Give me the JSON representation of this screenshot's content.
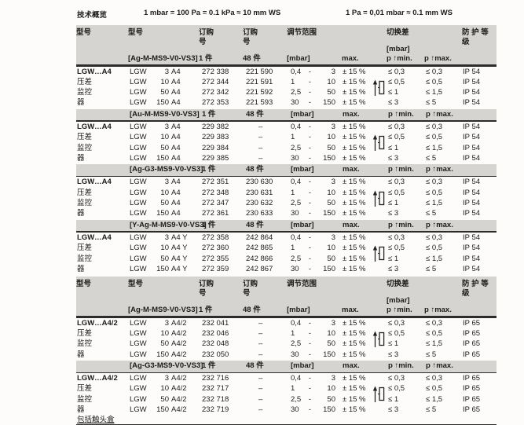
{
  "header": {
    "title": "技术概览",
    "conversion_left": "1 mbar = 100 Pa = 0.1 kPa ≈ 10 mm WS",
    "conversion_right": "1 Pa = 0,01 mbar ≈ 0.1 mm WS"
  },
  "column_headers": {
    "model_group": "型号",
    "model": "型号",
    "order_line1": "订购",
    "order_line2": "号",
    "range": "调节范围",
    "switching_diff": "切换差",
    "protection_line1": "防 护 等",
    "protection_line2": "级",
    "mbar": "[mbar]",
    "qty_1": "1 件",
    "qty_48": "48 件",
    "max": "max.",
    "p_min": "p ↑min.",
    "p_max": "p ↑max."
  },
  "icons": {
    "pressure_switch": "up-arrow-with-contact-symbol"
  },
  "colors": {
    "band_gray": "#d5d4d1",
    "rule_dark": "#2e2c2a",
    "text": "#1d1c1a",
    "page_bg": "#fdfcfa"
  },
  "tables": [
    {
      "sections": [
        {
          "variant": "[Ag-M-MS9-V0-VS3]",
          "variant_in_main_header": true,
          "group_label": "LGW…A4",
          "group_sublabels": [
            "压差",
            "监控",
            "器"
          ],
          "rows": [
            {
              "model": [
                "LGW",
                "3",
                "A4"
              ],
              "order_1pc": "272 338",
              "order_48pc": "221 590",
              "range": [
                "0,4",
                "3"
              ],
              "tolerance": "± 15 %",
              "p_min": "≤ 0,3",
              "p_max": "≤ 0,3",
              "protection": "IP 54"
            },
            {
              "model": [
                "LGW",
                "10",
                "A4"
              ],
              "order_1pc": "272 344",
              "order_48pc": "221 591",
              "range": [
                "1",
                "10"
              ],
              "tolerance": "± 15 %",
              "p_min": "≤ 0,5",
              "p_max": "≤ 0,5",
              "protection": "IP 54"
            },
            {
              "model": [
                "LGW",
                "50",
                "A4"
              ],
              "order_1pc": "272 342",
              "order_48pc": "221 592",
              "range": [
                "2,5",
                "50"
              ],
              "tolerance": "± 15 %",
              "p_min": "≤ 1",
              "p_max": "≤ 1,5",
              "protection": "IP 54"
            },
            {
              "model": [
                "LGW",
                "150",
                "A4"
              ],
              "order_1pc": "272 353",
              "order_48pc": "221 593",
              "range": [
                "30",
                "150"
              ],
              "tolerance": "± 15 %",
              "p_min": "≤ 3",
              "p_max": "≤ 5",
              "protection": "IP 54"
            }
          ]
        },
        {
          "variant": "[Au-M-MS9-V0-VS3]",
          "variant_in_main_header": false,
          "group_label": "LGW…A4",
          "group_sublabels": [
            "压差",
            "监控",
            "器"
          ],
          "rows": [
            {
              "model": [
                "LGW",
                "3",
                "A4"
              ],
              "order_1pc": "229 382",
              "order_48pc": "–",
              "range": [
                "0,4",
                "3"
              ],
              "tolerance": "± 15 %",
              "p_min": "≤ 0,3",
              "p_max": "≤ 0,3",
              "protection": "IP 54"
            },
            {
              "model": [
                "LGW",
                "10",
                "A4"
              ],
              "order_1pc": "229 383",
              "order_48pc": "–",
              "range": [
                "1",
                "10"
              ],
              "tolerance": "± 15 %",
              "p_min": "≤ 0,5",
              "p_max": "≤ 0,5",
              "protection": "IP 54"
            },
            {
              "model": [
                "LGW",
                "50",
                "A4"
              ],
              "order_1pc": "229 384",
              "order_48pc": "–",
              "range": [
                "2,5",
                "50"
              ],
              "tolerance": "± 15 %",
              "p_min": "≤ 1",
              "p_max": "≤ 1,5",
              "protection": "IP 54"
            },
            {
              "model": [
                "LGW",
                "150",
                "A4"
              ],
              "order_1pc": "229 385",
              "order_48pc": "–",
              "range": [
                "30",
                "150"
              ],
              "tolerance": "± 15 %",
              "p_min": "≤ 3",
              "p_max": "≤ 5",
              "protection": "IP 54"
            }
          ]
        },
        {
          "variant": "[Ag-G3-MS9-V0-VS3]",
          "variant_in_main_header": false,
          "group_label": "LGW…A4",
          "group_sublabels": [
            "压差",
            "监控",
            "器"
          ],
          "rows": [
            {
              "model": [
                "LGW",
                "3",
                "A4"
              ],
              "order_1pc": "272 351",
              "order_48pc": "230 630",
              "range": [
                "0,4",
                "3"
              ],
              "tolerance": "± 15 %",
              "p_min": "≤ 0,3",
              "p_max": "≤ 0,3",
              "protection": "IP 54"
            },
            {
              "model": [
                "LGW",
                "10",
                "A4"
              ],
              "order_1pc": "272 348",
              "order_48pc": "230 631",
              "range": [
                "1",
                "10"
              ],
              "tolerance": "± 15 %",
              "p_min": "≤ 0,5",
              "p_max": "≤ 0,5",
              "protection": "IP 54"
            },
            {
              "model": [
                "LGW",
                "50",
                "A4"
              ],
              "order_1pc": "272 347",
              "order_48pc": "230 632",
              "range": [
                "2,5",
                "50"
              ],
              "tolerance": "± 15 %",
              "p_min": "≤ 1",
              "p_max": "≤ 1,5",
              "protection": "IP 54"
            },
            {
              "model": [
                "LGW",
                "150",
                "A4"
              ],
              "order_1pc": "272 361",
              "order_48pc": "230 633",
              "range": [
                "30",
                "150"
              ],
              "tolerance": "± 15 %",
              "p_min": "≤ 3",
              "p_max": "≤ 5",
              "protection": "IP 54"
            }
          ]
        },
        {
          "variant": "[Y-Ag-M-MS9-V0-VS3]",
          "variant_in_main_header": false,
          "group_label": "LGW…A4",
          "group_sublabels": [
            "压差",
            "监控",
            "器"
          ],
          "rows": [
            {
              "model": [
                "LGW",
                "3",
                "A4 Y"
              ],
              "order_1pc": "272 358",
              "order_48pc": "242 864",
              "range": [
                "0,4",
                "3"
              ],
              "tolerance": "± 15 %",
              "p_min": "≤ 0,3",
              "p_max": "≤ 0,3",
              "protection": "IP 54"
            },
            {
              "model": [
                "LGW",
                "10",
                "A4 Y"
              ],
              "order_1pc": "272 360",
              "order_48pc": "242 865",
              "range": [
                "1",
                "10"
              ],
              "tolerance": "± 15 %",
              "p_min": "≤ 0,5",
              "p_max": "≤ 0,5",
              "protection": "IP 54"
            },
            {
              "model": [
                "LGW",
                "50",
                "A4 Y"
              ],
              "order_1pc": "272 355",
              "order_48pc": "242 866",
              "range": [
                "2,5",
                "50"
              ],
              "tolerance": "± 15 %",
              "p_min": "≤ 1",
              "p_max": "≤ 1,5",
              "protection": "IP 54"
            },
            {
              "model": [
                "LGW",
                "150",
                "A4 Y"
              ],
              "order_1pc": "272 359",
              "order_48pc": "242 867",
              "range": [
                "30",
                "150"
              ],
              "tolerance": "± 15 %",
              "p_min": "≤ 3",
              "p_max": "≤ 5",
              "protection": "IP 54"
            }
          ]
        }
      ]
    },
    {
      "sections": [
        {
          "variant": "[Ag-M-MS9-V0-VS3]",
          "variant_in_main_header": true,
          "group_label": "LGW…A4/2",
          "group_sublabels": [
            "压差",
            "监控",
            "器"
          ],
          "rows": [
            {
              "model": [
                "LGW",
                "3",
                "A4/2"
              ],
              "order_1pc": "232 041",
              "order_48pc": "–",
              "range": [
                "0,4",
                "3"
              ],
              "tolerance": "± 15 %",
              "p_min": "≤ 0,3",
              "p_max": "≤ 0,3",
              "protection": "IP 65"
            },
            {
              "model": [
                "LGW",
                "10",
                "A4/2"
              ],
              "order_1pc": "232 046",
              "order_48pc": "–",
              "range": [
                "1",
                "10"
              ],
              "tolerance": "± 15 %",
              "p_min": "≤ 0,5",
              "p_max": "≤ 0,5",
              "protection": "IP 65"
            },
            {
              "model": [
                "LGW",
                "50",
                "A4/2"
              ],
              "order_1pc": "232 048",
              "order_48pc": "–",
              "range": [
                "2,5",
                "50"
              ],
              "tolerance": "± 15 %",
              "p_min": "≤ 1",
              "p_max": "≤ 1,5",
              "protection": "IP 65"
            },
            {
              "model": [
                "LGW",
                "150",
                "A4/2"
              ],
              "order_1pc": "232 050",
              "order_48pc": "–",
              "range": [
                "30",
                "150"
              ],
              "tolerance": "± 15 %",
              "p_min": "≤ 3",
              "p_max": "≤ 5",
              "protection": "IP 65"
            }
          ]
        },
        {
          "variant": "[Ag-G3-MS9-V0-VS3]",
          "variant_in_main_header": false,
          "group_label": "LGW…A4/2",
          "group_sublabels": [
            "压差",
            "监控",
            "器"
          ],
          "group_extra_label": "包括触头盒",
          "rows": [
            {
              "model": [
                "LGW",
                "3",
                "A4/2"
              ],
              "order_1pc": "232 716",
              "order_48pc": "–",
              "range": [
                "0,4",
                "3"
              ],
              "tolerance": "± 15 %",
              "p_min": "≤ 0,3",
              "p_max": "≤ 0,3",
              "protection": "IP 65"
            },
            {
              "model": [
                "LGW",
                "10",
                "A4/2"
              ],
              "order_1pc": "232 717",
              "order_48pc": "–",
              "range": [
                "1",
                "10"
              ],
              "tolerance": "± 15 %",
              "p_min": "≤ 0,5",
              "p_max": "≤ 0,5",
              "protection": "IP 65"
            },
            {
              "model": [
                "LGW",
                "50",
                "A4/2"
              ],
              "order_1pc": "232 718",
              "order_48pc": "–",
              "range": [
                "2,5",
                "50"
              ],
              "tolerance": "± 15 %",
              "p_min": "≤ 1",
              "p_max": "≤ 1,5",
              "protection": "IP 65"
            },
            {
              "model": [
                "LGW",
                "150",
                "A4/2"
              ],
              "order_1pc": "232 719",
              "order_48pc": "–",
              "range": [
                "30",
                "150"
              ],
              "tolerance": "± 15 %",
              "p_min": "≤ 3",
              "p_max": "≤ 5",
              "protection": "IP 65"
            }
          ]
        }
      ]
    }
  ]
}
